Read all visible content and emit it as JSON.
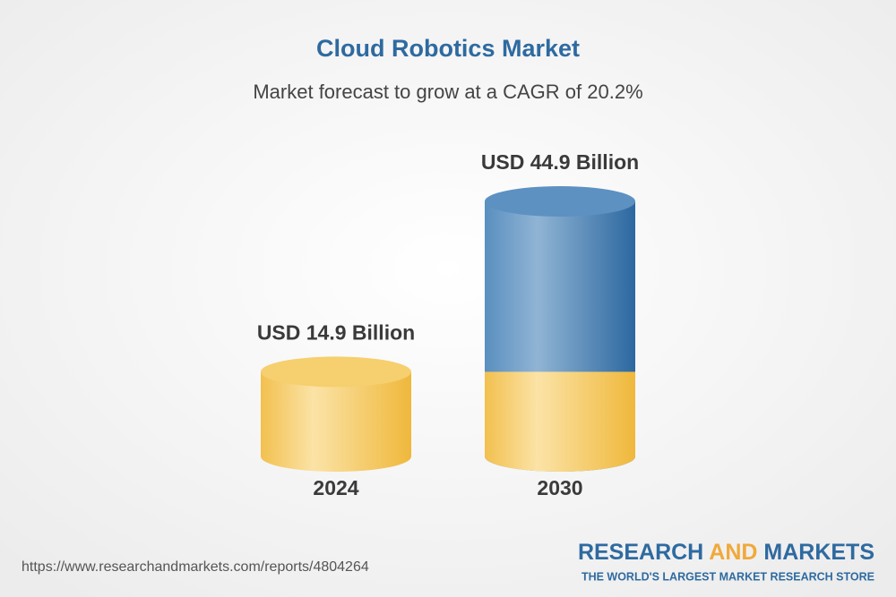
{
  "chart_data": {
    "type": "cylinder",
    "title": "Cloud Robotics Market",
    "subtitle": "Market forecast to grow at a CAGR of 20.2%",
    "categories": [
      "2024",
      "2030"
    ],
    "values": [
      14.9,
      44.9
    ],
    "value_labels": [
      "USD 14.9 Billion",
      "USD 44.9 Billion"
    ]
  },
  "footer": {
    "source": "https://www.researchandmarkets.com/reports/4804264",
    "brand": [
      "RESEARCH",
      "AND",
      "MARKETS"
    ],
    "tagline": "THE WORLD'S LARGEST MARKET RESEARCH STORE"
  }
}
